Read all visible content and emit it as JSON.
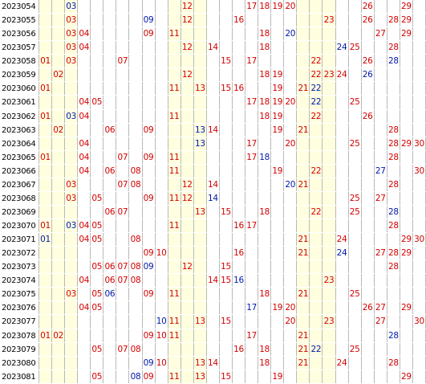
{
  "colors": {
    "red": "#d40000",
    "blue": "#0018a8",
    "grid": "#b9b9b9",
    "highlight": "#ffffe0"
  },
  "rows": [
    {
      "period": "2023054",
      "nums": [
        [
          3,
          "b"
        ],
        [
          12,
          "r"
        ],
        [
          17,
          "r"
        ],
        [
          18,
          "r"
        ],
        [
          19,
          "r"
        ],
        [
          20,
          "r"
        ],
        [
          26,
          "r"
        ],
        [
          29,
          "r"
        ]
      ]
    },
    {
      "period": "2023055",
      "nums": [
        [
          3,
          "r"
        ],
        [
          9,
          "b"
        ],
        [
          12,
          "r"
        ],
        [
          16,
          "r"
        ],
        [
          23,
          "r"
        ],
        [
          26,
          "r"
        ],
        [
          28,
          "r"
        ],
        [
          29,
          "r"
        ]
      ]
    },
    {
      "period": "2023056",
      "nums": [
        [
          3,
          "r"
        ],
        [
          4,
          "r"
        ],
        [
          9,
          "r"
        ],
        [
          11,
          "r"
        ],
        [
          18,
          "r"
        ],
        [
          20,
          "b"
        ],
        [
          27,
          "r"
        ],
        [
          29,
          "r"
        ]
      ]
    },
    {
      "period": "2023057",
      "nums": [
        [
          3,
          "r"
        ],
        [
          4,
          "r"
        ],
        [
          12,
          "r"
        ],
        [
          14,
          "r"
        ],
        [
          18,
          "r"
        ],
        [
          24,
          "b"
        ],
        [
          25,
          "r"
        ],
        [
          28,
          "r"
        ]
      ]
    },
    {
      "period": "2023058",
      "nums": [
        [
          1,
          "r"
        ],
        [
          3,
          "r"
        ],
        [
          7,
          "r"
        ],
        [
          15,
          "r"
        ],
        [
          17,
          "r"
        ],
        [
          22,
          "r"
        ],
        [
          26,
          "r"
        ],
        [
          28,
          "b"
        ]
      ]
    },
    {
      "period": "2023059",
      "nums": [
        [
          2,
          "r"
        ],
        [
          12,
          "r"
        ],
        [
          18,
          "r"
        ],
        [
          19,
          "r"
        ],
        [
          22,
          "r"
        ],
        [
          23,
          "r"
        ],
        [
          24,
          "r"
        ],
        [
          26,
          "b"
        ]
      ]
    },
    {
      "period": "2023060",
      "nums": [
        [
          1,
          "r"
        ],
        [
          11,
          "r"
        ],
        [
          13,
          "r"
        ],
        [
          15,
          "r"
        ],
        [
          16,
          "r"
        ],
        [
          19,
          "r"
        ],
        [
          21,
          "r"
        ],
        [
          22,
          "b"
        ]
      ]
    },
    {
      "period": "2023061",
      "nums": [
        [
          4,
          "r"
        ],
        [
          5,
          "r"
        ],
        [
          17,
          "r"
        ],
        [
          18,
          "r"
        ],
        [
          19,
          "r"
        ],
        [
          20,
          "r"
        ],
        [
          22,
          "b"
        ],
        [
          25,
          "r"
        ]
      ]
    },
    {
      "period": "2023062",
      "nums": [
        [
          1,
          "r"
        ],
        [
          3,
          "b"
        ],
        [
          4,
          "r"
        ],
        [
          11,
          "r"
        ],
        [
          18,
          "r"
        ],
        [
          19,
          "r"
        ],
        [
          22,
          "r"
        ],
        [
          26,
          "r"
        ]
      ]
    },
    {
      "period": "2023063",
      "nums": [
        [
          2,
          "r"
        ],
        [
          6,
          "r"
        ],
        [
          9,
          "r"
        ],
        [
          13,
          "b"
        ],
        [
          14,
          "r"
        ],
        [
          19,
          "r"
        ],
        [
          21,
          "r"
        ],
        [
          28,
          "r"
        ]
      ]
    },
    {
      "period": "2023064",
      "nums": [
        [
          4,
          "r"
        ],
        [
          13,
          "b"
        ],
        [
          17,
          "r"
        ],
        [
          20,
          "r"
        ],
        [
          25,
          "r"
        ],
        [
          28,
          "r"
        ],
        [
          29,
          "r"
        ],
        [
          30,
          "r"
        ]
      ]
    },
    {
      "period": "2023065",
      "nums": [
        [
          1,
          "r"
        ],
        [
          4,
          "r"
        ],
        [
          7,
          "r"
        ],
        [
          9,
          "r"
        ],
        [
          11,
          "r"
        ],
        [
          17,
          "r"
        ],
        [
          18,
          "b"
        ],
        [
          28,
          "r"
        ]
      ]
    },
    {
      "period": "2023066",
      "nums": [
        [
          4,
          "r"
        ],
        [
          6,
          "r"
        ],
        [
          8,
          "r"
        ],
        [
          11,
          "r"
        ],
        [
          19,
          "r"
        ],
        [
          22,
          "r"
        ],
        [
          27,
          "b"
        ],
        [
          30,
          "r"
        ]
      ]
    },
    {
      "period": "2023067",
      "nums": [
        [
          3,
          "r"
        ],
        [
          7,
          "r"
        ],
        [
          8,
          "r"
        ],
        [
          12,
          "r"
        ],
        [
          14,
          "r"
        ],
        [
          20,
          "b"
        ],
        [
          21,
          "r"
        ],
        [
          28,
          "r"
        ]
      ]
    },
    {
      "period": "2023068",
      "nums": [
        [
          3,
          "r"
        ],
        [
          5,
          "r"
        ],
        [
          9,
          "r"
        ],
        [
          11,
          "r"
        ],
        [
          12,
          "r"
        ],
        [
          14,
          "b"
        ],
        [
          25,
          "r"
        ],
        [
          27,
          "r"
        ]
      ]
    },
    {
      "period": "2023069",
      "nums": [
        [
          6,
          "r"
        ],
        [
          7,
          "r"
        ],
        [
          13,
          "r"
        ],
        [
          15,
          "r"
        ],
        [
          18,
          "r"
        ],
        [
          22,
          "r"
        ],
        [
          25,
          "r"
        ],
        [
          28,
          "b"
        ]
      ]
    },
    {
      "period": "2023070",
      "nums": [
        [
          1,
          "r"
        ],
        [
          3,
          "b"
        ],
        [
          4,
          "r"
        ],
        [
          5,
          "r"
        ],
        [
          11,
          "r"
        ],
        [
          16,
          "r"
        ],
        [
          17,
          "r"
        ],
        [
          28,
          "r"
        ]
      ]
    },
    {
      "period": "2023071",
      "nums": [
        [
          1,
          "b"
        ],
        [
          4,
          "r"
        ],
        [
          5,
          "r"
        ],
        [
          8,
          "r"
        ],
        [
          21,
          "r"
        ],
        [
          24,
          "r"
        ],
        [
          29,
          "r"
        ],
        [
          30,
          "r"
        ]
      ]
    },
    {
      "period": "2023072",
      "nums": [
        [
          9,
          "r"
        ],
        [
          10,
          "r"
        ],
        [
          16,
          "r"
        ],
        [
          21,
          "r"
        ],
        [
          24,
          "b"
        ],
        [
          27,
          "r"
        ],
        [
          28,
          "r"
        ],
        [
          29,
          "r"
        ]
      ]
    },
    {
      "period": "2023073",
      "nums": [
        [
          5,
          "r"
        ],
        [
          6,
          "r"
        ],
        [
          7,
          "r"
        ],
        [
          8,
          "r"
        ],
        [
          9,
          "b"
        ],
        [
          12,
          "r"
        ],
        [
          15,
          "r"
        ],
        [
          28,
          "r"
        ]
      ]
    },
    {
      "period": "2023074",
      "nums": [
        [
          4,
          "r"
        ],
        [
          6,
          "r"
        ],
        [
          7,
          "r"
        ],
        [
          8,
          "r"
        ],
        [
          14,
          "r"
        ],
        [
          15,
          "r"
        ],
        [
          16,
          "b"
        ],
        [
          23,
          "r"
        ]
      ]
    },
    {
      "period": "2023075",
      "nums": [
        [
          3,
          "r"
        ],
        [
          5,
          "r"
        ],
        [
          6,
          "b"
        ],
        [
          9,
          "r"
        ],
        [
          11,
          "r"
        ],
        [
          18,
          "r"
        ],
        [
          21,
          "r"
        ],
        [
          25,
          "r"
        ]
      ]
    },
    {
      "period": "2023076",
      "nums": [
        [
          4,
          "r"
        ],
        [
          5,
          "r"
        ],
        [
          17,
          "b"
        ],
        [
          19,
          "r"
        ],
        [
          20,
          "r"
        ],
        [
          26,
          "r"
        ],
        [
          27,
          "r"
        ],
        [
          29,
          "r"
        ]
      ]
    },
    {
      "period": "2023077",
      "nums": [
        [
          10,
          "b"
        ],
        [
          11,
          "r"
        ],
        [
          13,
          "r"
        ],
        [
          15,
          "r"
        ],
        [
          20,
          "r"
        ],
        [
          23,
          "r"
        ],
        [
          27,
          "r"
        ],
        [
          30,
          "r"
        ]
      ]
    },
    {
      "period": "2023078",
      "nums": [
        [
          1,
          "r"
        ],
        [
          2,
          "r"
        ],
        [
          9,
          "r"
        ],
        [
          10,
          "r"
        ],
        [
          11,
          "r"
        ],
        [
          17,
          "r"
        ],
        [
          21,
          "r"
        ],
        [
          28,
          "b"
        ]
      ]
    },
    {
      "period": "2023079",
      "nums": [
        [
          5,
          "r"
        ],
        [
          7,
          "r"
        ],
        [
          8,
          "r"
        ],
        [
          16,
          "r"
        ],
        [
          18,
          "r"
        ],
        [
          21,
          "r"
        ],
        [
          22,
          "b"
        ],
        [
          25,
          "r"
        ]
      ]
    },
    {
      "period": "2023080",
      "nums": [
        [
          9,
          "b"
        ],
        [
          10,
          "r"
        ],
        [
          13,
          "r"
        ],
        [
          14,
          "r"
        ],
        [
          18,
          "r"
        ],
        [
          21,
          "r"
        ],
        [
          24,
          "r"
        ],
        [
          28,
          "r"
        ]
      ]
    },
    {
      "period": "2023081",
      "nums": [
        [
          5,
          "r"
        ],
        [
          8,
          "b"
        ],
        [
          9,
          "r"
        ],
        [
          11,
          "r"
        ],
        [
          13,
          "r"
        ],
        [
          15,
          "r"
        ],
        [
          19,
          "r"
        ],
        [
          29,
          "r"
        ]
      ]
    }
  ]
}
